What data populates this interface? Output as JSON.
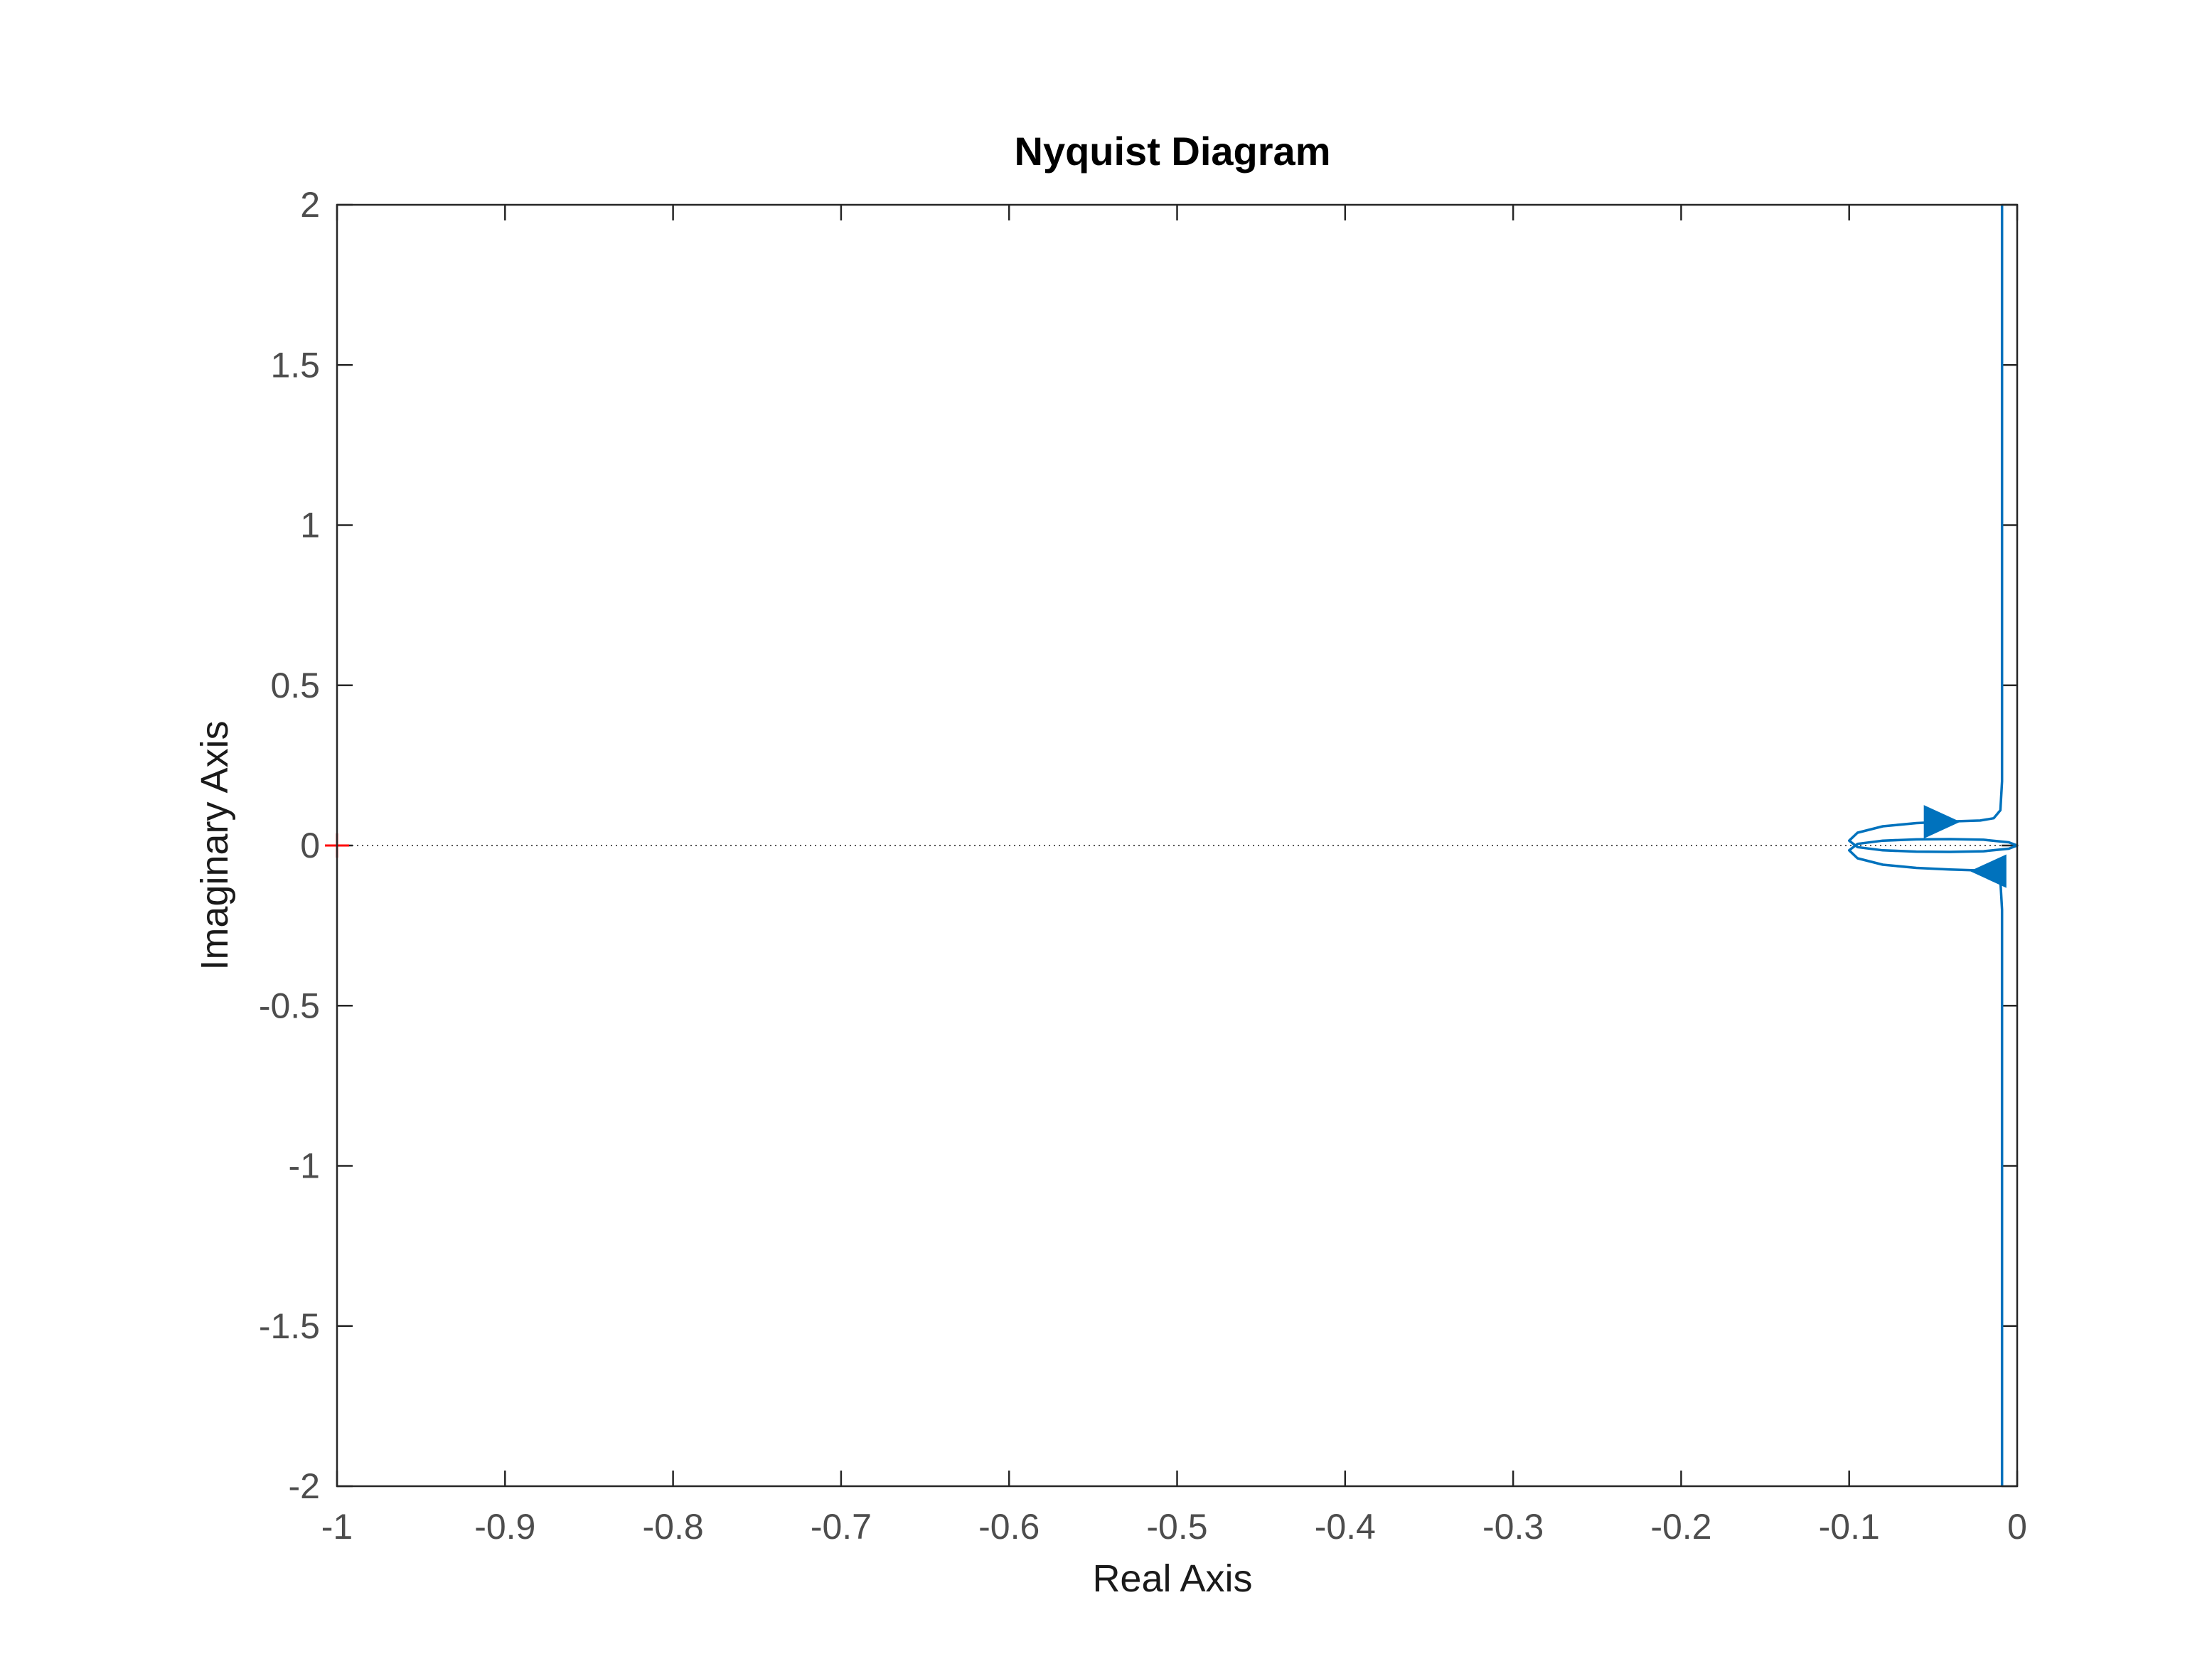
{
  "chart_data": {
    "type": "line",
    "title": "Nyquist Diagram",
    "xlabel": "Real Axis",
    "ylabel": "Imaginary Axis",
    "xlim": [
      -1,
      0
    ],
    "ylim": [
      -2,
      2
    ],
    "xticks": [
      -1,
      -0.9,
      -0.8,
      -0.7,
      -0.6,
      -0.5,
      -0.4,
      -0.3,
      -0.2,
      -0.1,
      0
    ],
    "xtick_labels": [
      "-1",
      "-0.9",
      "-0.8",
      "-0.7",
      "-0.6",
      "-0.5",
      "-0.4",
      "-0.3",
      "-0.2",
      "-0.1",
      "0"
    ],
    "yticks": [
      2,
      1.5,
      1,
      0.5,
      0,
      -0.5,
      -1,
      -1.5,
      -2
    ],
    "ytick_labels": [
      "2",
      "1.5",
      "1",
      "0.5",
      "0",
      "-0.5",
      "-1",
      "-1.5",
      "-2"
    ],
    "grid": false,
    "series": [
      {
        "color": "#0072bd",
        "points": [
          [
            -0.009,
            2.0
          ],
          [
            -0.009,
            1.0
          ],
          [
            -0.009,
            0.5
          ],
          [
            -0.009,
            0.2
          ],
          [
            -0.01,
            0.11
          ],
          [
            -0.014,
            0.085
          ],
          [
            -0.022,
            0.078
          ],
          [
            -0.04,
            0.075
          ],
          [
            -0.06,
            0.07
          ],
          [
            -0.08,
            0.06
          ],
          [
            -0.095,
            0.04
          ],
          [
            -0.1,
            0.015
          ],
          [
            -0.095,
            -0.005
          ],
          [
            -0.08,
            -0.015
          ],
          [
            -0.06,
            -0.019
          ],
          [
            -0.04,
            -0.02
          ],
          [
            -0.02,
            -0.018
          ],
          [
            -0.005,
            -0.01
          ],
          [
            0.0,
            0.0
          ],
          [
            -0.005,
            0.01
          ],
          [
            -0.02,
            0.018
          ],
          [
            -0.04,
            0.02
          ],
          [
            -0.06,
            0.019
          ],
          [
            -0.08,
            0.015
          ],
          [
            -0.095,
            0.005
          ],
          [
            -0.1,
            -0.015
          ],
          [
            -0.095,
            -0.04
          ],
          [
            -0.08,
            -0.06
          ],
          [
            -0.06,
            -0.07
          ],
          [
            -0.04,
            -0.075
          ],
          [
            -0.022,
            -0.078
          ],
          [
            -0.014,
            -0.085
          ],
          [
            -0.01,
            -0.11
          ],
          [
            -0.009,
            -0.2
          ],
          [
            -0.009,
            -0.5
          ],
          [
            -0.009,
            -1.0
          ],
          [
            -0.009,
            -2.0
          ]
        ],
        "arrows": [
          {
            "at": [
              -0.045,
              0.074
            ],
            "direction": "right"
          },
          {
            "at": [
              -0.017,
              -0.08
            ],
            "direction": "left"
          }
        ]
      }
    ],
    "reference_line": {
      "y": 0,
      "style": "dotted",
      "color": "#555555"
    },
    "critical_point": {
      "x": -1,
      "y": 0,
      "marker": "+",
      "color": "#ff0000"
    }
  }
}
